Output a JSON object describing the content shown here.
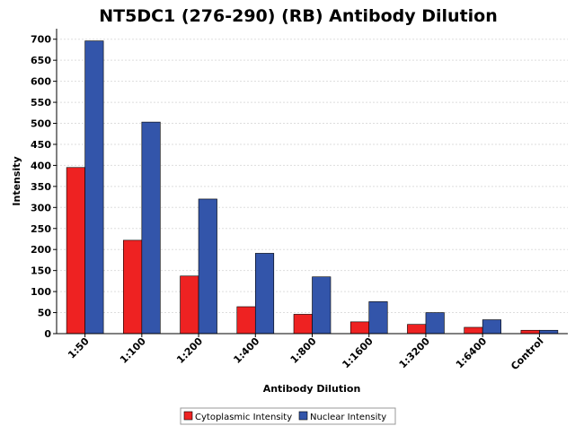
{
  "chart_data": {
    "type": "bar",
    "title": "NT5DC1 (276-290) (RB) Antibody Dilution",
    "xlabel": "Antibody Dilution",
    "ylabel": "Intensity",
    "categories": [
      "1:50",
      "1:100",
      "1:200",
      "1:400",
      "1:800",
      "1:1600",
      "1:3200",
      "1:6400",
      "Control"
    ],
    "series": [
      {
        "name": "Cytoplasmic Intensity",
        "color": "#EE2222",
        "values": [
          395,
          222,
          137,
          64,
          46,
          28,
          22,
          15,
          8
        ]
      },
      {
        "name": "Nuclear Intensity",
        "color": "#3355AA",
        "values": [
          696,
          503,
          320,
          191,
          135,
          76,
          50,
          33,
          8
        ]
      }
    ],
    "ylim": [
      0,
      725
    ],
    "yticks": [
      0,
      50,
      100,
      150,
      200,
      250,
      300,
      350,
      400,
      450,
      500,
      550,
      600,
      650,
      700
    ],
    "grid": true,
    "legend_position": "bottom-center"
  }
}
